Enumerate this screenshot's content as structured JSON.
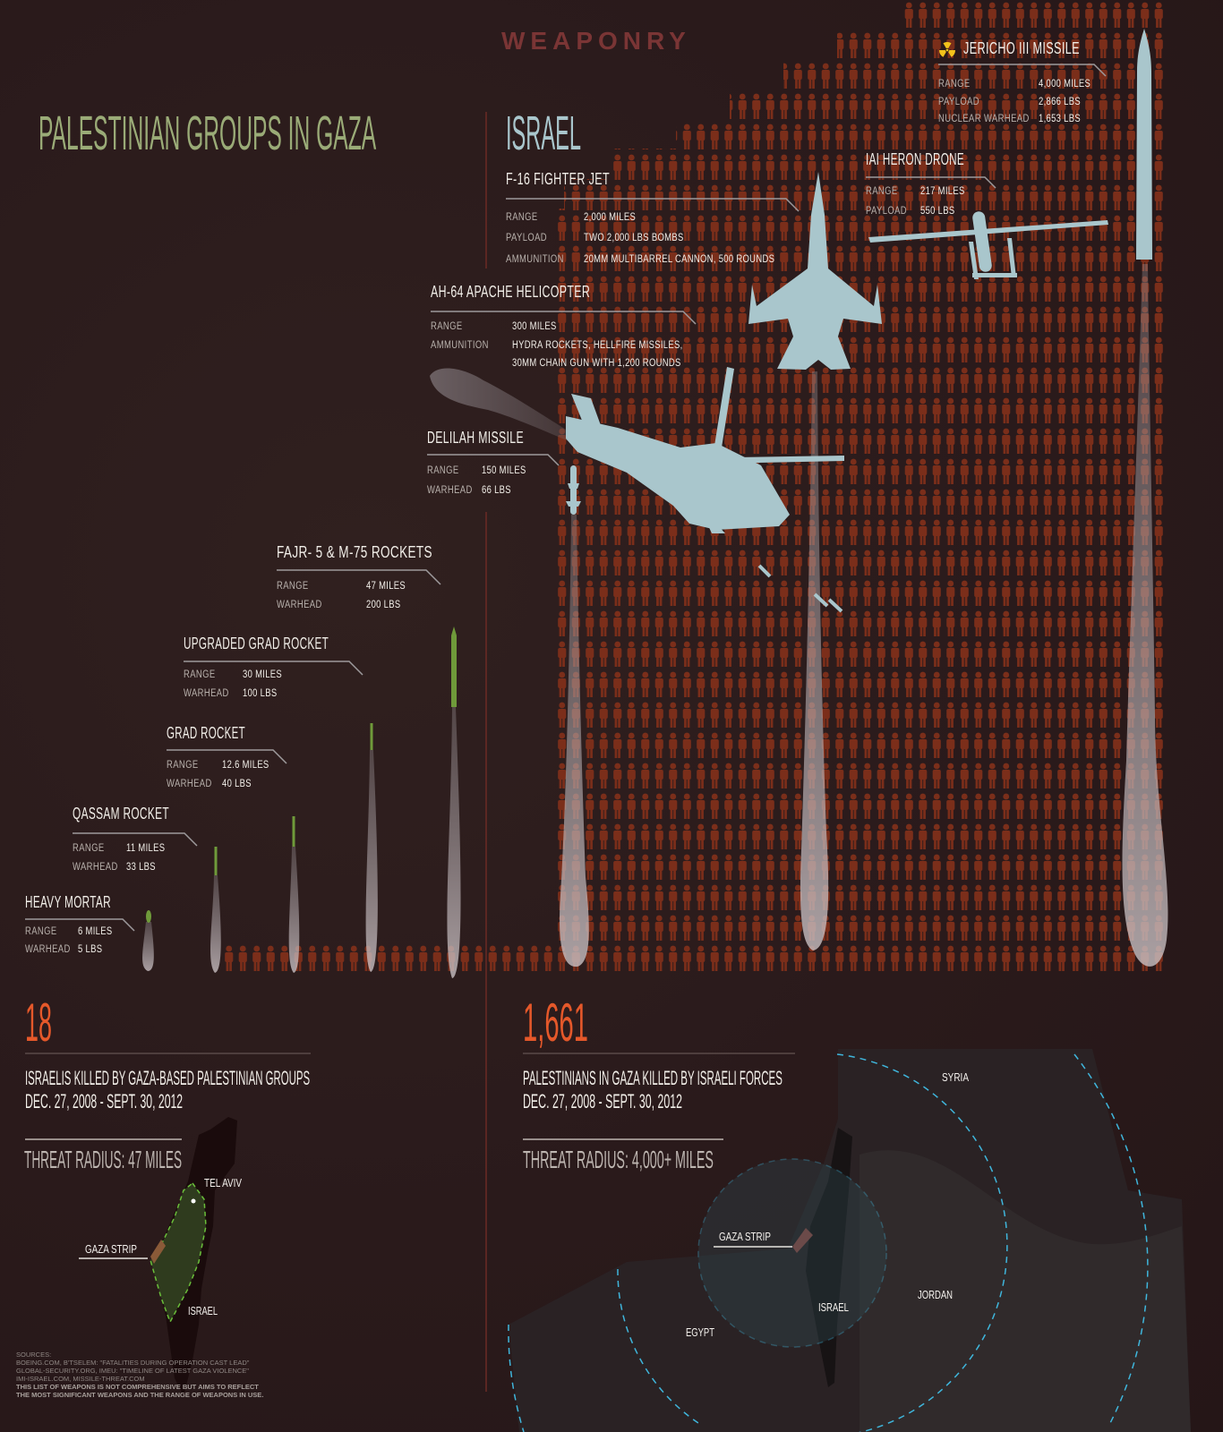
{
  "header": {
    "title": "WEAPONRY"
  },
  "palestinian": {
    "heading": "PALESTINIAN GROUPS IN GAZA",
    "killed_count": "18",
    "killed_caption": "ISRAELIS KILLED BY GAZA-BASED PALESTINIAN GROUPS",
    "date_range": "DEC. 27, 2008 - SEPT. 30, 2012",
    "threat_radius": "THREAT RADIUS: 47 MILES",
    "map_labels": {
      "tel_aviv": "TEL AVIV",
      "gaza_strip": "GAZA STRIP",
      "israel": "ISRAEL"
    }
  },
  "israel": {
    "heading": "ISRAEL",
    "killed_count": "1,661",
    "killed_caption": "PALESTINIANS IN GAZA KILLED BY ISRAELI FORCES",
    "date_range": "DEC. 27, 2008 - SEPT. 30, 2012",
    "threat_radius": "THREAT RADIUS: 4,000+ MILES",
    "map_labels": {
      "syria": "SYRIA",
      "gaza_strip": "GAZA STRIP",
      "israel": "ISRAEL",
      "jordan": "JORDAN",
      "egypt": "EGYPT"
    }
  },
  "weapons": [
    {
      "id": "jericho",
      "side": "israel",
      "icon": "radiation-icon",
      "title": "JERICHO III MISSILE",
      "specs": [
        {
          "label": "RANGE",
          "value": "4,000 MILES"
        },
        {
          "label": "PAYLOAD",
          "value": "2,866 LBS"
        },
        {
          "label": "NUCLEAR WARHEAD",
          "value": "1,653 LBS"
        }
      ]
    },
    {
      "id": "heron",
      "side": "israel",
      "title": "IAI HERON DRONE",
      "specs": [
        {
          "label": "RANGE",
          "value": "217 MILES"
        },
        {
          "label": "PAYLOAD",
          "value": "550 LBS"
        }
      ]
    },
    {
      "id": "f16",
      "side": "israel",
      "title": "F-16 FIGHTER JET",
      "specs": [
        {
          "label": "RANGE",
          "value": "2,000 MILES"
        },
        {
          "label": "PAYLOAD",
          "value": "TWO 2,000 LBS BOMBS"
        },
        {
          "label": "AMMUNITION",
          "value": "20MM MULTIBARREL CANNON, 500 ROUNDS"
        }
      ]
    },
    {
      "id": "apache",
      "side": "israel",
      "title": "AH-64 APACHE HELICOPTER",
      "specs": [
        {
          "label": "RANGE",
          "value": "300 MILES"
        },
        {
          "label": "AMMUNITION",
          "value": "HYDRA ROCKETS, HELLFIRE MISSILES,"
        },
        {
          "label": "",
          "value": "30MM CHAIN GUN WITH 1,200 ROUNDS"
        }
      ]
    },
    {
      "id": "delilah",
      "side": "israel",
      "title": "DELILAH MISSILE",
      "specs": [
        {
          "label": "RANGE",
          "value": "150 MILES"
        },
        {
          "label": "WARHEAD",
          "value": "66 LBS"
        }
      ]
    },
    {
      "id": "fajr",
      "side": "palestinian",
      "title": "FAJR- 5 & M-75 ROCKETS",
      "specs": [
        {
          "label": "RANGE",
          "value": "47 MILES"
        },
        {
          "label": "WARHEAD",
          "value": "200 LBS"
        }
      ]
    },
    {
      "id": "upgraded-grad",
      "side": "palestinian",
      "title": "UPGRADED GRAD ROCKET",
      "specs": [
        {
          "label": "RANGE",
          "value": "30 MILES"
        },
        {
          "label": "WARHEAD",
          "value": "100 LBS"
        }
      ]
    },
    {
      "id": "grad",
      "side": "palestinian",
      "title": "GRAD ROCKET",
      "specs": [
        {
          "label": "RANGE",
          "value": "12.6 MILES"
        },
        {
          "label": "WARHEAD",
          "value": "40 LBS"
        }
      ]
    },
    {
      "id": "qassam",
      "side": "palestinian",
      "title": "QASSAM ROCKET",
      "specs": [
        {
          "label": "RANGE",
          "value": "11 MILES"
        },
        {
          "label": "WARHEAD",
          "value": "33 LBS"
        }
      ]
    },
    {
      "id": "mortar",
      "side": "palestinian",
      "title": "HEAVY MORTAR",
      "specs": [
        {
          "label": "RANGE",
          "value": "6 MILES"
        },
        {
          "label": "WARHEAD",
          "value": "5 LBS"
        }
      ]
    }
  ],
  "sources": {
    "heading": "SOURCES:",
    "lines": [
      "BOEING.COM, B'TSELEM: \"FATALITIES DURING OPERATION CAST LEAD\"",
      "GLOBAL-SECURITY.ORG, IMEU: \"TIMELINE OF LATEST GAZA VIOLENCE\"",
      "IMI-ISRAEL.COM, MISSILE-THREAT.COM"
    ],
    "disclaimer": [
      "THIS LIST OF WEAPONS IS NOT COMPREHENSIVE BUT AIMS TO REFLECT",
      "THE MOST SIGNIFICANT WEAPONS AND THE RANGE OF WEAPONS IN USE."
    ]
  },
  "colors": {
    "background": "#2a1a1b",
    "person_icon": "#7b2e1a",
    "israel_accent": "#a9c6cc",
    "palestinian_accent": "#9aab77",
    "count": "#e5582a",
    "rocket": "#6f9a3a",
    "radius_dash": "#3fb6dc",
    "title_red": "#7a3535"
  }
}
